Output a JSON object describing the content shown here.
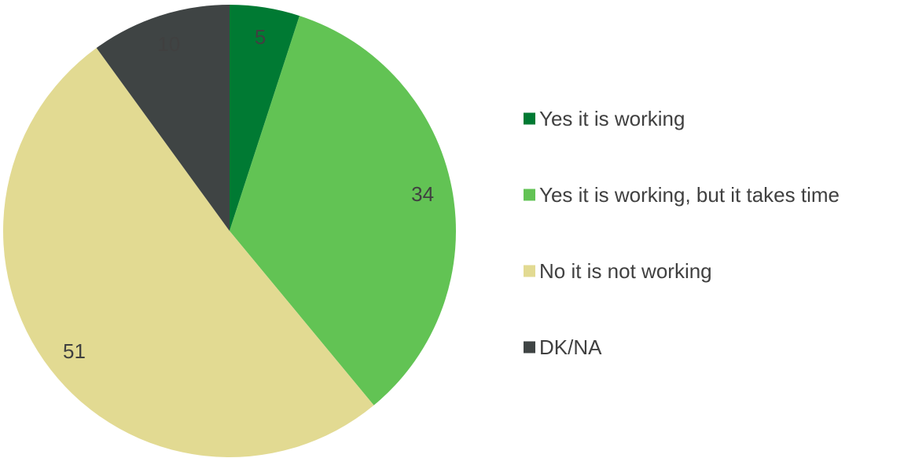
{
  "chart_data": {
    "type": "pie",
    "categories": [
      "Yes it is working",
      "Yes it is working, but it takes time",
      "No it is not working",
      "DK/NA"
    ],
    "values": [
      5,
      34,
      51,
      10
    ],
    "colors": [
      "#007A33",
      "#62C354",
      "#E2DA92",
      "#3F4444"
    ],
    "title": "",
    "legend_position": "right",
    "labels_shown": [
      "5",
      "34",
      "51",
      "10"
    ]
  }
}
